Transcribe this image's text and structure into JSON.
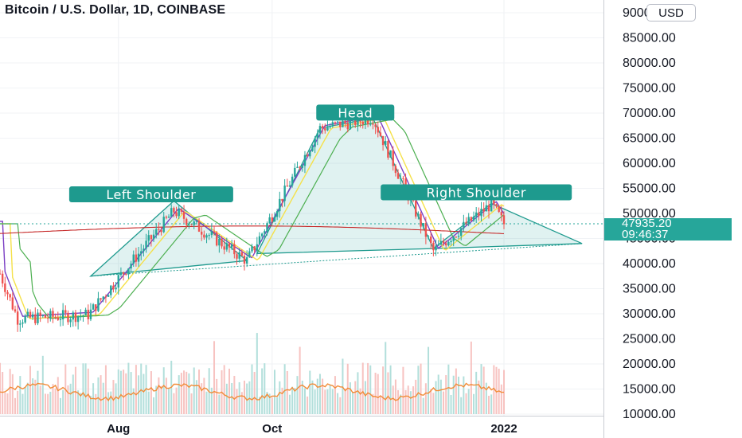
{
  "header": {
    "title": "Bitcoin / U.S. Dollar, 1D, COINBASE",
    "currency_label": "USD"
  },
  "price_badge": {
    "last_price": "47935.20",
    "countdown": "09:46:37"
  },
  "colors": {
    "up": "#26a69a",
    "down": "#ef5350",
    "ma_fast": "#7b3fc4",
    "ma_yellow": "#f5e14a",
    "ma_green": "#4caf50",
    "ma_red": "#c62828",
    "volume_ma": "#f28c38",
    "pattern": "#1e9a8e"
  },
  "chart_data": {
    "type": "line",
    "title": "Bitcoin / U.S. Dollar, 1D, COINBASE",
    "ylim": [
      10000,
      90000
    ],
    "ytick_labels": [
      "90000.00",
      "85000.00",
      "80000.00",
      "75000.00",
      "70000.00",
      "65000.00",
      "60000.00",
      "55000.00",
      "50000.00",
      "45000.00",
      "40000.00",
      "35000.00",
      "30000.00",
      "25000.00",
      "20000.00",
      "15000.00",
      "10000.00"
    ],
    "x_tick_labels": [
      "Aug",
      "Oct",
      "2022"
    ],
    "grid": true,
    "pattern_labels": [
      "Left Shoulder",
      "Head",
      "Right Shoulder"
    ],
    "key_points": [
      {
        "date": "2021-06-22",
        "price": 29000
      },
      {
        "date": "2021-07-20",
        "price": 29800
      },
      {
        "date": "2021-08-23",
        "price": 50500
      },
      {
        "date": "2021-09-21",
        "price": 40600
      },
      {
        "date": "2021-10-20",
        "price": 67000
      },
      {
        "date": "2021-11-10",
        "price": 69000
      },
      {
        "date": "2021-12-04",
        "price": 42500
      },
      {
        "date": "2021-12-27",
        "price": 51900
      },
      {
        "date": "2022-01-01",
        "price": 47935.2
      }
    ],
    "last_price": 47935.2
  }
}
